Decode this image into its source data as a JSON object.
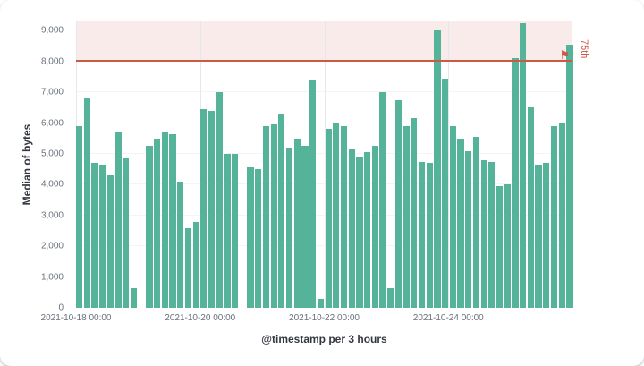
{
  "chart_data": {
    "type": "bar",
    "title": "",
    "xlabel": "@timestamp per 3 hours",
    "ylabel": "Median of bytes",
    "ylim": [
      0,
      9300
    ],
    "grid": "light horizontal and vertical gridlines, no axis lines",
    "legend": "none",
    "colors": {
      "bar": "#54B399",
      "axis_label": "#69707D",
      "axis_title": "#343741"
    },
    "y_ticks": [
      {
        "value": 0,
        "label": "0"
      },
      {
        "value": 1000,
        "label": "1,000"
      },
      {
        "value": 2000,
        "label": "2,000"
      },
      {
        "value": 3000,
        "label": "3,000"
      },
      {
        "value": 4000,
        "label": "4,000"
      },
      {
        "value": 5000,
        "label": "5,000"
      },
      {
        "value": 6000,
        "label": "6,000"
      },
      {
        "value": 7000,
        "label": "7,000"
      },
      {
        "value": 8000,
        "label": "8,000"
      },
      {
        "value": 9000,
        "label": "9,000"
      }
    ],
    "x_ticks": [
      {
        "label": "2021-10-18 00:00",
        "slot": 0
      },
      {
        "label": "2021-10-20 00:00",
        "slot": 16
      },
      {
        "label": "2021-10-22 00:00",
        "slot": 32
      },
      {
        "label": "2021-10-24 00:00",
        "slot": 48
      }
    ],
    "values": [
      5900,
      6800,
      4700,
      4650,
      4300,
      5700,
      4850,
      650,
      0,
      5250,
      5500,
      5700,
      5650,
      4100,
      2600,
      2800,
      6450,
      6400,
      7000,
      5000,
      5000,
      0,
      4550,
      4500,
      5900,
      5950,
      6300,
      5200,
      5500,
      5250,
      7400,
      300,
      5800,
      6000,
      5900,
      5150,
      4900,
      5050,
      5250,
      7000,
      650,
      6750,
      5900,
      6150,
      4750,
      4700,
      9000,
      7450,
      5900,
      5500,
      5100,
      5550,
      4800,
      4750,
      3950,
      4000,
      8100,
      9250,
      6500,
      4650,
      4700,
      5900,
      6000,
      8550
    ],
    "threshold": {
      "value": 8000,
      "label": "75th",
      "color": "#CA5948",
      "band_color": "rgba(202,89,72,0.12)",
      "flag_icon": "flag-icon"
    }
  }
}
